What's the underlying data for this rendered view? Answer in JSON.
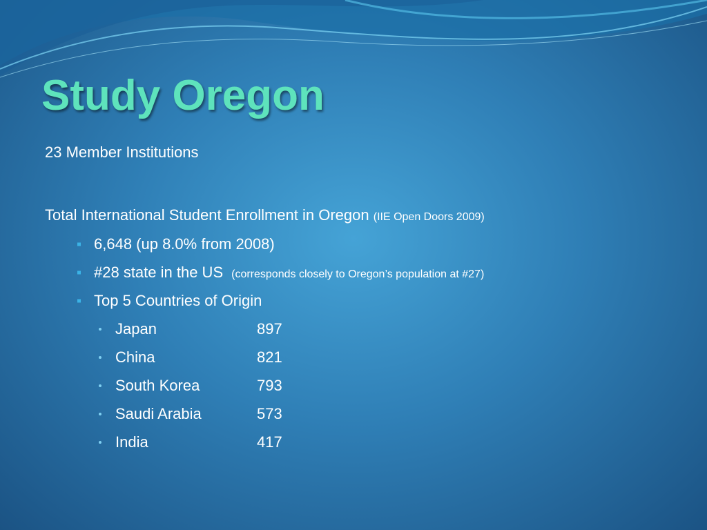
{
  "title": "Study Oregon",
  "members": "23 Member Institutions",
  "enrollment": {
    "text": "Total International Student Enrollment in Oregon",
    "source": "(IIE Open Doors 2009)"
  },
  "bullets": [
    {
      "text": "6,648 (up 8.0% from 2008)"
    },
    {
      "text": "#28 state in the US",
      "note": "(corresponds closely to Oregon’s population at #27)"
    },
    {
      "text": "Top 5 Countries of Origin"
    }
  ],
  "countries": [
    {
      "name": "Japan",
      "count": 897
    },
    {
      "name": "China",
      "count": 821
    },
    {
      "name": "South Korea",
      "count": 793
    },
    {
      "name": "Saudi Arabia",
      "count": 573
    },
    {
      "name": "India",
      "count": 417
    }
  ]
}
